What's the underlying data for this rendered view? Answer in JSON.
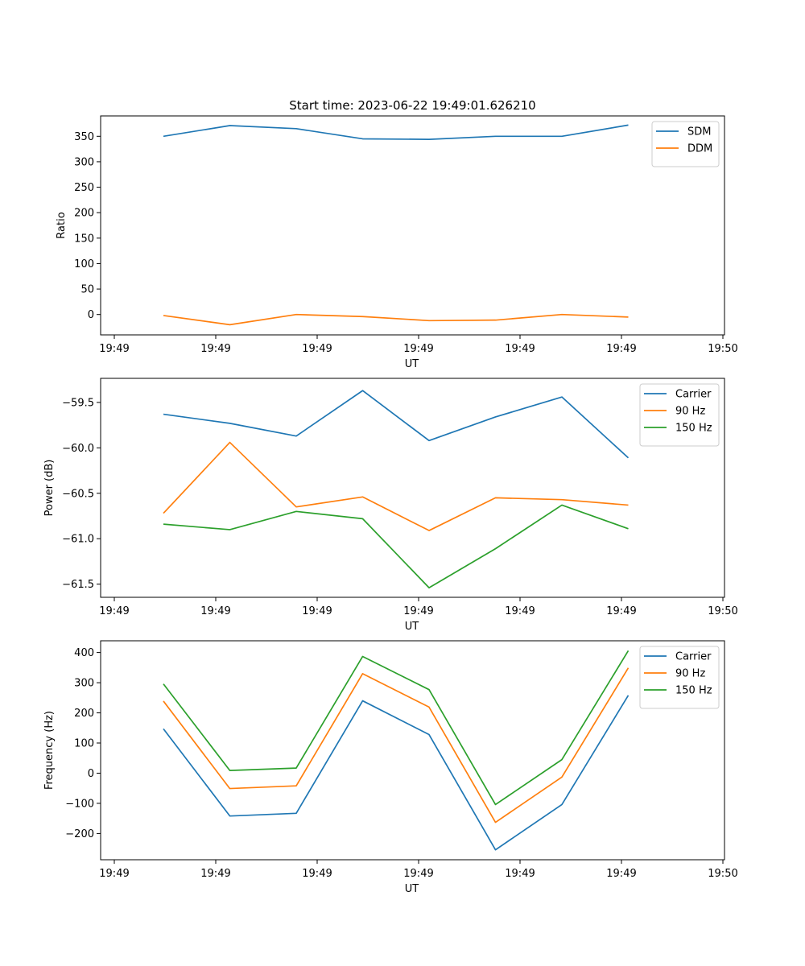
{
  "chart_data": [
    {
      "type": "line",
      "title": "Start time: 2023-06-22 19:49:01.626210",
      "xlabel": "UT",
      "ylabel": "Ratio",
      "xtick_labels": [
        "19:49",
        "19:49",
        "19:49",
        "19:49",
        "19:49",
        "19:49",
        "19:50"
      ],
      "yticks": [
        0,
        50,
        100,
        150,
        200,
        250,
        300,
        350
      ],
      "ylim": [
        -40,
        390
      ],
      "x": [
        1,
        2,
        3,
        4,
        5,
        6,
        7,
        8
      ],
      "legend_position": "top-right",
      "colors": {
        "SDM": "#1f77b4",
        "DDM": "#ff7f0e"
      },
      "series": [
        {
          "name": "SDM",
          "values": [
            350,
            371,
            365,
            345,
            344,
            350,
            350,
            372
          ]
        },
        {
          "name": "DDM",
          "values": [
            -2,
            -20,
            0,
            -4,
            -12,
            -11,
            0,
            -5
          ]
        }
      ]
    },
    {
      "type": "line",
      "title": "",
      "xlabel": "UT",
      "ylabel": "Power (dB)",
      "xtick_labels": [
        "19:49",
        "19:49",
        "19:49",
        "19:49",
        "19:49",
        "19:49",
        "19:50"
      ],
      "yticks": [
        -59.5,
        -60.0,
        -60.5,
        -61.0,
        -61.5
      ],
      "ytick_labels": [
        "−59.5",
        "−60.0",
        "−60.5",
        "−61.0",
        "−61.5"
      ],
      "ylim": [
        -61.645,
        -59.235
      ],
      "x": [
        1,
        2,
        3,
        4,
        5,
        6,
        7,
        8
      ],
      "legend_position": "top-right",
      "colors": {
        "Carrier": "#1f77b4",
        "90 Hz": "#ff7f0e",
        "150 Hz": "#2ca02c"
      },
      "series": [
        {
          "name": "Carrier",
          "values": [
            -59.63,
            -59.73,
            -59.87,
            -59.37,
            -59.92,
            -59.66,
            -59.44,
            -60.11
          ]
        },
        {
          "name": "90 Hz",
          "values": [
            -60.72,
            -59.94,
            -60.65,
            -60.54,
            -60.91,
            -60.55,
            -60.57,
            -60.63
          ]
        },
        {
          "name": "150 Hz",
          "values": [
            -60.84,
            -60.9,
            -60.7,
            -60.78,
            -61.54,
            -61.11,
            -60.63,
            -60.89
          ]
        }
      ]
    },
    {
      "type": "line",
      "title": "",
      "xlabel": "UT",
      "ylabel": "Frequency (Hz)",
      "xtick_labels": [
        "19:49",
        "19:49",
        "19:49",
        "19:49",
        "19:49",
        "19:49",
        "19:50"
      ],
      "yticks": [
        -200,
        -100,
        0,
        100,
        200,
        300,
        400
      ],
      "ytick_labels": [
        "−200",
        "−100",
        "0",
        "100",
        "200",
        "300",
        "400"
      ],
      "ylim": [
        -287,
        439
      ],
      "x": [
        1,
        2,
        3,
        4,
        5,
        6,
        7,
        8
      ],
      "legend_position": "top-right",
      "colors": {
        "Carrier": "#1f77b4",
        "90 Hz": "#ff7f0e",
        "150 Hz": "#2ca02c"
      },
      "series": [
        {
          "name": "Carrier",
          "values": [
            147,
            -142,
            -133,
            240,
            128,
            -254,
            -104,
            258
          ]
        },
        {
          "name": "90 Hz",
          "values": [
            239,
            -51,
            -42,
            330,
            219,
            -163,
            -13,
            349
          ]
        },
        {
          "name": "150 Hz",
          "values": [
            296,
            9,
            17,
            387,
            277,
            -104,
            45,
            406
          ]
        }
      ]
    }
  ]
}
